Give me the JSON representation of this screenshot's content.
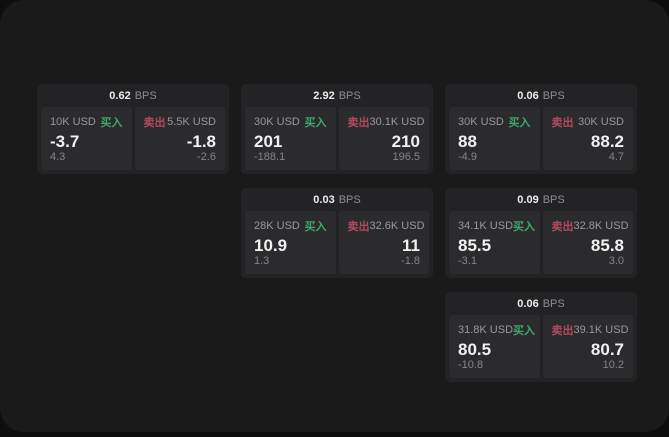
{
  "labels": {
    "bps_unit": "BPS",
    "buy": "买入",
    "sell": "卖出"
  },
  "colors": {
    "buy_green": "#3fa76c",
    "sell_red": "#b24a60",
    "surface": "#1a1a1b",
    "card_background": "#232325",
    "panel_background": "#2b2b2d",
    "text_primary": "#f1f1f2",
    "text_secondary": "#98989a"
  },
  "cards": [
    {
      "bps": "0.62",
      "buy": {
        "amount": "10K USD",
        "price": "-3.7",
        "delta": "4.3"
      },
      "sell": {
        "amount": "5.5K USD",
        "price": "-1.8",
        "delta": "-2.6"
      }
    },
    {
      "bps": "2.92",
      "buy": {
        "amount": "30K USD",
        "price": "201",
        "delta": "-188.1"
      },
      "sell": {
        "amount": "30.1K USD",
        "price": "210",
        "delta": "196.5"
      }
    },
    {
      "bps": "0.06",
      "buy": {
        "amount": "30K USD",
        "price": "88",
        "delta": "-4.9"
      },
      "sell": {
        "amount": "30K USD",
        "price": "88.2",
        "delta": "4.7"
      }
    },
    {
      "bps": "0.03",
      "buy": {
        "amount": "28K USD",
        "price": "10.9",
        "delta": "1.3"
      },
      "sell": {
        "amount": "32.6K USD",
        "price": "11",
        "delta": "-1.8"
      }
    },
    {
      "bps": "0.09",
      "buy": {
        "amount": "34.1K USD",
        "price": "85.5",
        "delta": "-3.1"
      },
      "sell": {
        "amount": "32.8K USD",
        "price": "85.8",
        "delta": "3.0"
      }
    },
    {
      "bps": "0.06",
      "buy": {
        "amount": "31.8K USD",
        "price": "80.5",
        "delta": "-10.8"
      },
      "sell": {
        "amount": "39.1K USD",
        "price": "80.7",
        "delta": "10.2"
      }
    }
  ]
}
